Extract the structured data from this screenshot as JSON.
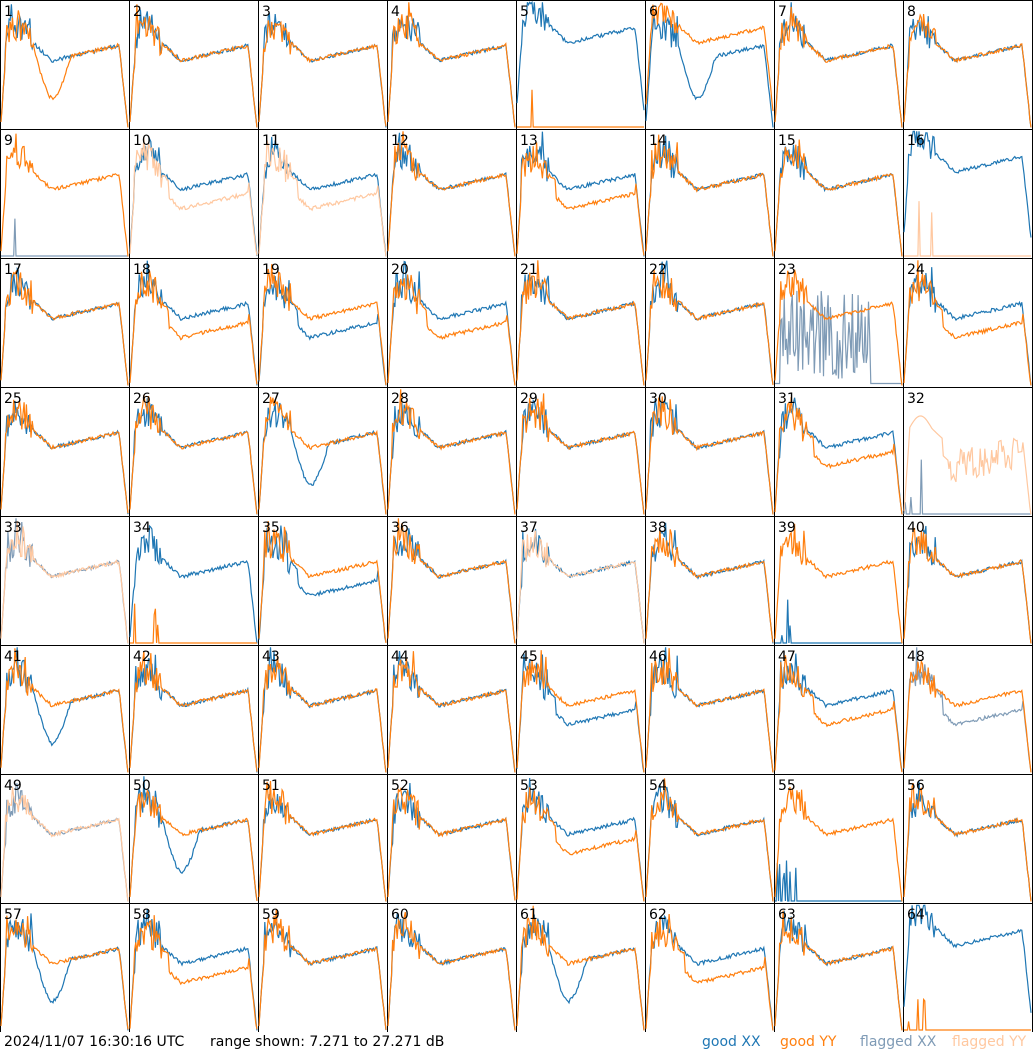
{
  "footer": {
    "timestamp": "2024/11/07 16:30:16 UTC",
    "range_text": "range shown: 7.271 to 27.271 dB"
  },
  "legend": [
    {
      "label": "good XX",
      "color": "#1f77b4"
    },
    {
      "label": "good YY",
      "color": "#ff7f0e"
    },
    {
      "label": "flagged XX",
      "color": "#7f9bb6"
    },
    {
      "label": "flagged YY",
      "color": "#ffc8a0"
    }
  ],
  "chart_data": {
    "type": "line",
    "grid": "8x8 small multiples",
    "ylim_db": [
      7.271,
      27.271
    ],
    "tiles": [
      {
        "id": "1",
        "xx": "good",
        "yy": "good",
        "xx_shape": "base",
        "yy_shape": "dip"
      },
      {
        "id": "2",
        "xx": "good",
        "yy": "good",
        "xx_shape": "base",
        "yy_shape": "base"
      },
      {
        "id": "3",
        "xx": "good",
        "yy": "good",
        "xx_shape": "base",
        "yy_shape": "base"
      },
      {
        "id": "4",
        "xx": "good",
        "yy": "good",
        "xx_shape": "base",
        "yy_shape": "base"
      },
      {
        "id": "5",
        "xx": "good",
        "yy": "good",
        "xx_shape": "high",
        "yy_shape": "dead"
      },
      {
        "id": "6",
        "xx": "good",
        "yy": "good",
        "xx_shape": "dip",
        "yy_shape": "high"
      },
      {
        "id": "7",
        "xx": "good",
        "yy": "good",
        "xx_shape": "base",
        "yy_shape": "base"
      },
      {
        "id": "8",
        "xx": "good",
        "yy": "good",
        "xx_shape": "base",
        "yy_shape": "base"
      },
      {
        "id": "9",
        "xx": "flagged",
        "yy": "good",
        "xx_shape": "dead",
        "yy_shape": "base"
      },
      {
        "id": "10",
        "xx": "good",
        "yy": "flagged",
        "xx_shape": "base",
        "yy_shape": "low"
      },
      {
        "id": "11",
        "xx": "good",
        "yy": "flagged",
        "xx_shape": "base",
        "yy_shape": "low"
      },
      {
        "id": "12",
        "xx": "good",
        "yy": "good",
        "xx_shape": "base",
        "yy_shape": "base"
      },
      {
        "id": "13",
        "xx": "good",
        "yy": "good",
        "xx_shape": "base",
        "yy_shape": "low"
      },
      {
        "id": "14",
        "xx": "good",
        "yy": "good",
        "xx_shape": "base",
        "yy_shape": "base"
      },
      {
        "id": "15",
        "xx": "good",
        "yy": "good",
        "xx_shape": "base",
        "yy_shape": "base"
      },
      {
        "id": "16",
        "xx": "good",
        "yy": "flagged",
        "xx_shape": "high",
        "yy_shape": "dead"
      },
      {
        "id": "17",
        "xx": "good",
        "yy": "good",
        "xx_shape": "base",
        "yy_shape": "base"
      },
      {
        "id": "18",
        "xx": "good",
        "yy": "good",
        "xx_shape": "base",
        "yy_shape": "low"
      },
      {
        "id": "19",
        "xx": "good",
        "yy": "good",
        "xx_shape": "low",
        "yy_shape": "base"
      },
      {
        "id": "20",
        "xx": "good",
        "yy": "good",
        "xx_shape": "base",
        "yy_shape": "low"
      },
      {
        "id": "21",
        "xx": "good",
        "yy": "good",
        "xx_shape": "base",
        "yy_shape": "base"
      },
      {
        "id": "22",
        "xx": "good",
        "yy": "good",
        "xx_shape": "base",
        "yy_shape": "base"
      },
      {
        "id": "23",
        "xx": "flagged",
        "yy": "good",
        "xx_shape": "noise",
        "yy_shape": "base"
      },
      {
        "id": "24",
        "xx": "good",
        "yy": "good",
        "xx_shape": "base",
        "yy_shape": "low"
      },
      {
        "id": "25",
        "xx": "good",
        "yy": "good",
        "xx_shape": "base",
        "yy_shape": "base"
      },
      {
        "id": "26",
        "xx": "good",
        "yy": "good",
        "xx_shape": "base",
        "yy_shape": "base"
      },
      {
        "id": "27",
        "xx": "good",
        "yy": "good",
        "xx_shape": "dip",
        "yy_shape": "base"
      },
      {
        "id": "28",
        "xx": "good",
        "yy": "good",
        "xx_shape": "base",
        "yy_shape": "base"
      },
      {
        "id": "29",
        "xx": "good",
        "yy": "good",
        "xx_shape": "base",
        "yy_shape": "base"
      },
      {
        "id": "30",
        "xx": "good",
        "yy": "good",
        "xx_shape": "base",
        "yy_shape": "base"
      },
      {
        "id": "31",
        "xx": "good",
        "yy": "good",
        "xx_shape": "base",
        "yy_shape": "low"
      },
      {
        "id": "32",
        "xx": "flagged",
        "yy": "flagged",
        "xx_shape": "dead",
        "yy_shape": "noisehigh"
      },
      {
        "id": "33",
        "xx": "flagged",
        "yy": "flagged",
        "xx_shape": "base",
        "yy_shape": "base"
      },
      {
        "id": "34",
        "xx": "good",
        "yy": "good",
        "xx_shape": "base",
        "yy_shape": "dead"
      },
      {
        "id": "35",
        "xx": "good",
        "yy": "good",
        "xx_shape": "low",
        "yy_shape": "base"
      },
      {
        "id": "36",
        "xx": "good",
        "yy": "good",
        "xx_shape": "base",
        "yy_shape": "base"
      },
      {
        "id": "37",
        "xx": "good",
        "yy": "flagged",
        "xx_shape": "base",
        "yy_shape": "base"
      },
      {
        "id": "38",
        "xx": "good",
        "yy": "good",
        "xx_shape": "base",
        "yy_shape": "base"
      },
      {
        "id": "39",
        "xx": "good",
        "yy": "good",
        "xx_shape": "dead",
        "yy_shape": "base"
      },
      {
        "id": "40",
        "xx": "good",
        "yy": "good",
        "xx_shape": "base",
        "yy_shape": "base"
      },
      {
        "id": "41",
        "xx": "good",
        "yy": "good",
        "xx_shape": "dip",
        "yy_shape": "base"
      },
      {
        "id": "42",
        "xx": "good",
        "yy": "good",
        "xx_shape": "base",
        "yy_shape": "base"
      },
      {
        "id": "43",
        "xx": "good",
        "yy": "good",
        "xx_shape": "base",
        "yy_shape": "base"
      },
      {
        "id": "44",
        "xx": "good",
        "yy": "good",
        "xx_shape": "base",
        "yy_shape": "base"
      },
      {
        "id": "45",
        "xx": "good",
        "yy": "good",
        "xx_shape": "low",
        "yy_shape": "base"
      },
      {
        "id": "46",
        "xx": "good",
        "yy": "good",
        "xx_shape": "base",
        "yy_shape": "base"
      },
      {
        "id": "47",
        "xx": "good",
        "yy": "good",
        "xx_shape": "base",
        "yy_shape": "low"
      },
      {
        "id": "48",
        "xx": "flagged",
        "yy": "good",
        "xx_shape": "low",
        "yy_shape": "base"
      },
      {
        "id": "49",
        "xx": "flagged",
        "yy": "flagged",
        "xx_shape": "base",
        "yy_shape": "base"
      },
      {
        "id": "50",
        "xx": "good",
        "yy": "good",
        "xx_shape": "dip",
        "yy_shape": "base"
      },
      {
        "id": "51",
        "xx": "good",
        "yy": "good",
        "xx_shape": "base",
        "yy_shape": "base"
      },
      {
        "id": "52",
        "xx": "good",
        "yy": "good",
        "xx_shape": "base",
        "yy_shape": "base"
      },
      {
        "id": "53",
        "xx": "good",
        "yy": "good",
        "xx_shape": "base",
        "yy_shape": "low"
      },
      {
        "id": "54",
        "xx": "good",
        "yy": "good",
        "xx_shape": "base",
        "yy_shape": "base"
      },
      {
        "id": "55",
        "xx": "good",
        "yy": "good",
        "xx_shape": "dead",
        "yy_shape": "base"
      },
      {
        "id": "56",
        "xx": "good",
        "yy": "good",
        "xx_shape": "base",
        "yy_shape": "base"
      },
      {
        "id": "57",
        "xx": "good",
        "yy": "good",
        "xx_shape": "dip",
        "yy_shape": "base"
      },
      {
        "id": "58",
        "xx": "good",
        "yy": "good",
        "xx_shape": "base",
        "yy_shape": "low"
      },
      {
        "id": "59",
        "xx": "good",
        "yy": "good",
        "xx_shape": "base",
        "yy_shape": "base"
      },
      {
        "id": "60",
        "xx": "good",
        "yy": "good",
        "xx_shape": "base",
        "yy_shape": "base"
      },
      {
        "id": "61",
        "xx": "good",
        "yy": "good",
        "xx_shape": "dip",
        "yy_shape": "base"
      },
      {
        "id": "62",
        "xx": "good",
        "yy": "good",
        "xx_shape": "base",
        "yy_shape": "low"
      },
      {
        "id": "63",
        "xx": "good",
        "yy": "good",
        "xx_shape": "base",
        "yy_shape": "base"
      },
      {
        "id": "64",
        "xx": "good",
        "yy": "good",
        "xx_shape": "high",
        "yy_shape": "dead"
      }
    ]
  }
}
